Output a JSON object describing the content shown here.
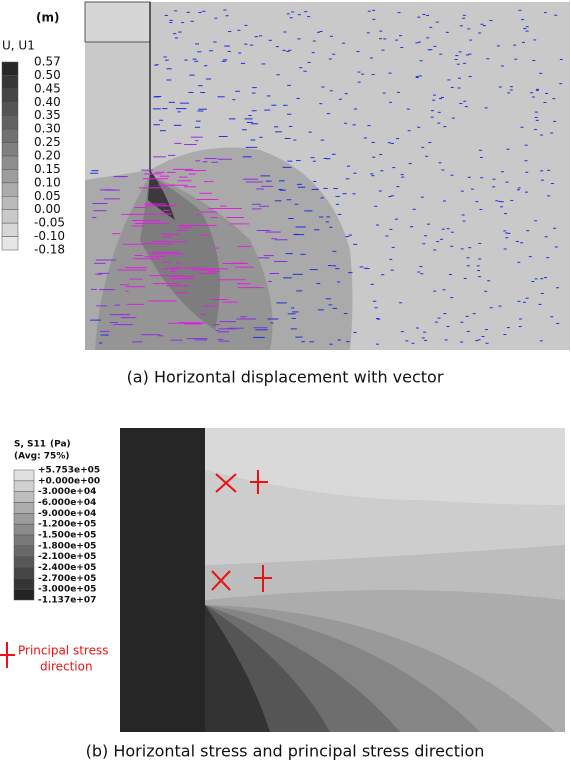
{
  "panel_a": {
    "unit": "(m)",
    "legend_title": "U, U1",
    "legend_labels": [
      "0.57",
      "0.50",
      "0.45",
      "0.40",
      "0.35",
      "0.30",
      "0.25",
      "0.20",
      "0.15",
      "0.10",
      "0.05",
      "0.00",
      "-0.05",
      "-0.10",
      "-0.18"
    ],
    "caption": "(a) Horizontal displacement with vector"
  },
  "panel_b": {
    "legend_title": "S, S11",
    "legend_unit": "(Pa)",
    "legend_avg": "(Avg: 75%)",
    "legend_labels": [
      "+5.753e+05",
      "+0.000e+00",
      "-3.000e+04",
      "-6.000e+04",
      "-9.000e+04",
      "-1.200e+05",
      "-1.500e+05",
      "-1.800e+05",
      "-2.100e+05",
      "-2.400e+05",
      "-2.700e+05",
      "-3.000e+05",
      "-1.137e+07"
    ],
    "annotation_line1": "Principal stress",
    "annotation_line2": "direction",
    "caption": "(b) Horizontal stress and principal stress direction"
  }
}
